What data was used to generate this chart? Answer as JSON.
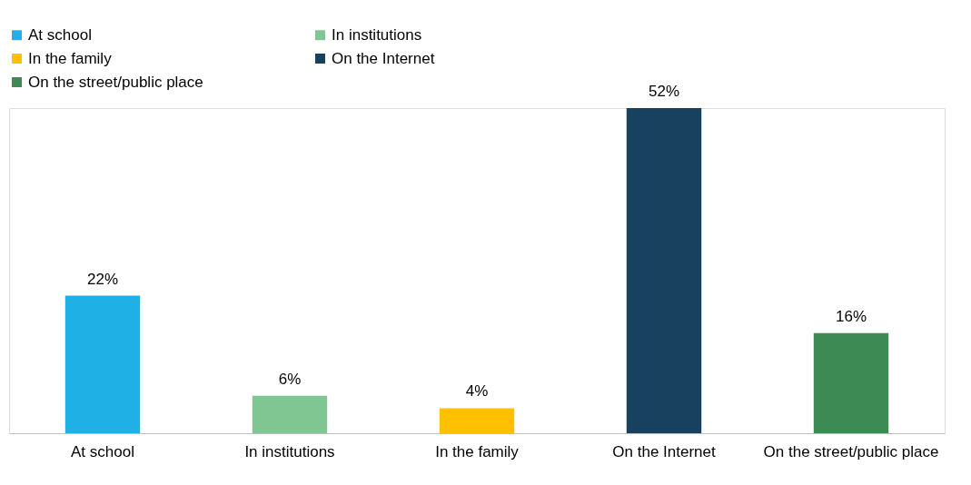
{
  "chart_data": {
    "type": "bar",
    "categories": [
      "At school",
      "In institutions",
      "In the family",
      "On the Internet",
      "On the street/public place"
    ],
    "series": [
      {
        "name": "At school",
        "color": "#1fb0e6",
        "values": [
          22,
          null,
          null,
          null,
          null
        ],
        "value_labels": [
          "22%",
          null,
          null,
          null,
          null
        ]
      },
      {
        "name": "In institutions",
        "color": "#80c693",
        "values": [
          null,
          6,
          null,
          null,
          null
        ],
        "value_labels": [
          null,
          "6%",
          null,
          null,
          null
        ]
      },
      {
        "name": "In the family",
        "color": "#ffc000",
        "values": [
          null,
          null,
          4,
          null,
          null
        ],
        "value_labels": [
          null,
          null,
          "4%",
          null,
          null
        ]
      },
      {
        "name": "On the Internet",
        "color": "#17415f",
        "values": [
          null,
          null,
          null,
          52,
          null
        ],
        "value_labels": [
          null,
          null,
          null,
          "52%",
          null
        ]
      },
      {
        "name": "On the street/public place",
        "color": "#3d8a55",
        "values": [
          null,
          null,
          null,
          null,
          16
        ],
        "value_labels": [
          null,
          null,
          null,
          null,
          "16%"
        ]
      }
    ],
    "legend": "top",
    "grid": false
  }
}
